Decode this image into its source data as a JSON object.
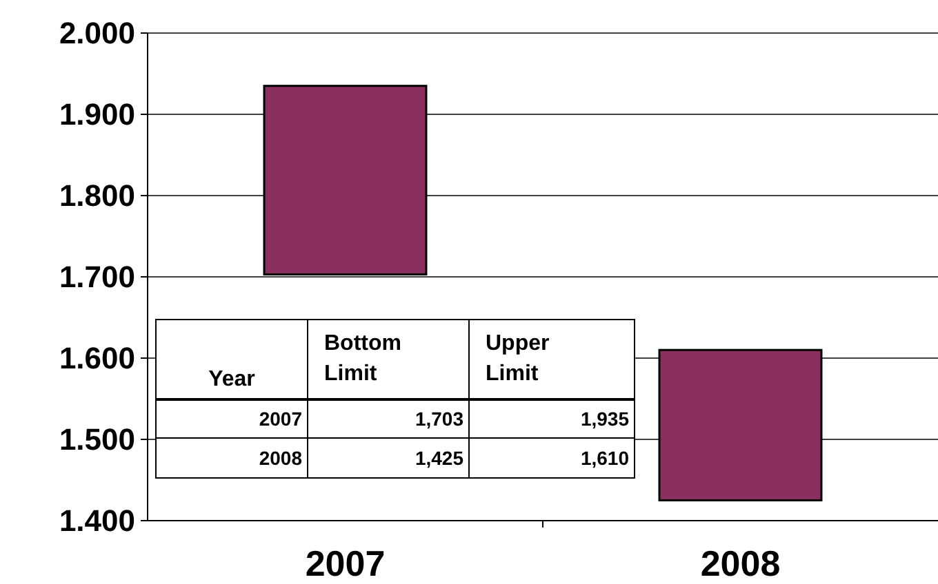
{
  "chart_data": {
    "type": "bar",
    "categories": [
      "2007",
      "2008"
    ],
    "base": [
      1.703,
      1.425
    ],
    "values": [
      0.232,
      0.185
    ],
    "color": "#8b2f5e",
    "ylim": [
      1.4,
      2.0
    ],
    "yticks": [
      {
        "value": 1.4,
        "label": "1.400"
      },
      {
        "value": 1.5,
        "label": "1.500"
      },
      {
        "value": 1.6,
        "label": "1.600"
      },
      {
        "value": 1.7,
        "label": "1.700"
      },
      {
        "value": 1.8,
        "label": "1.800"
      },
      {
        "value": 1.9,
        "label": "1.900"
      },
      {
        "value": 2.0,
        "label": "2.000"
      }
    ],
    "grid": "y",
    "annotations": [
      "Year",
      "Bottom Limit",
      "Upper Limit",
      "2007",
      "1,703",
      "1,935",
      "2008",
      "1,425",
      "1,610"
    ]
  }
}
